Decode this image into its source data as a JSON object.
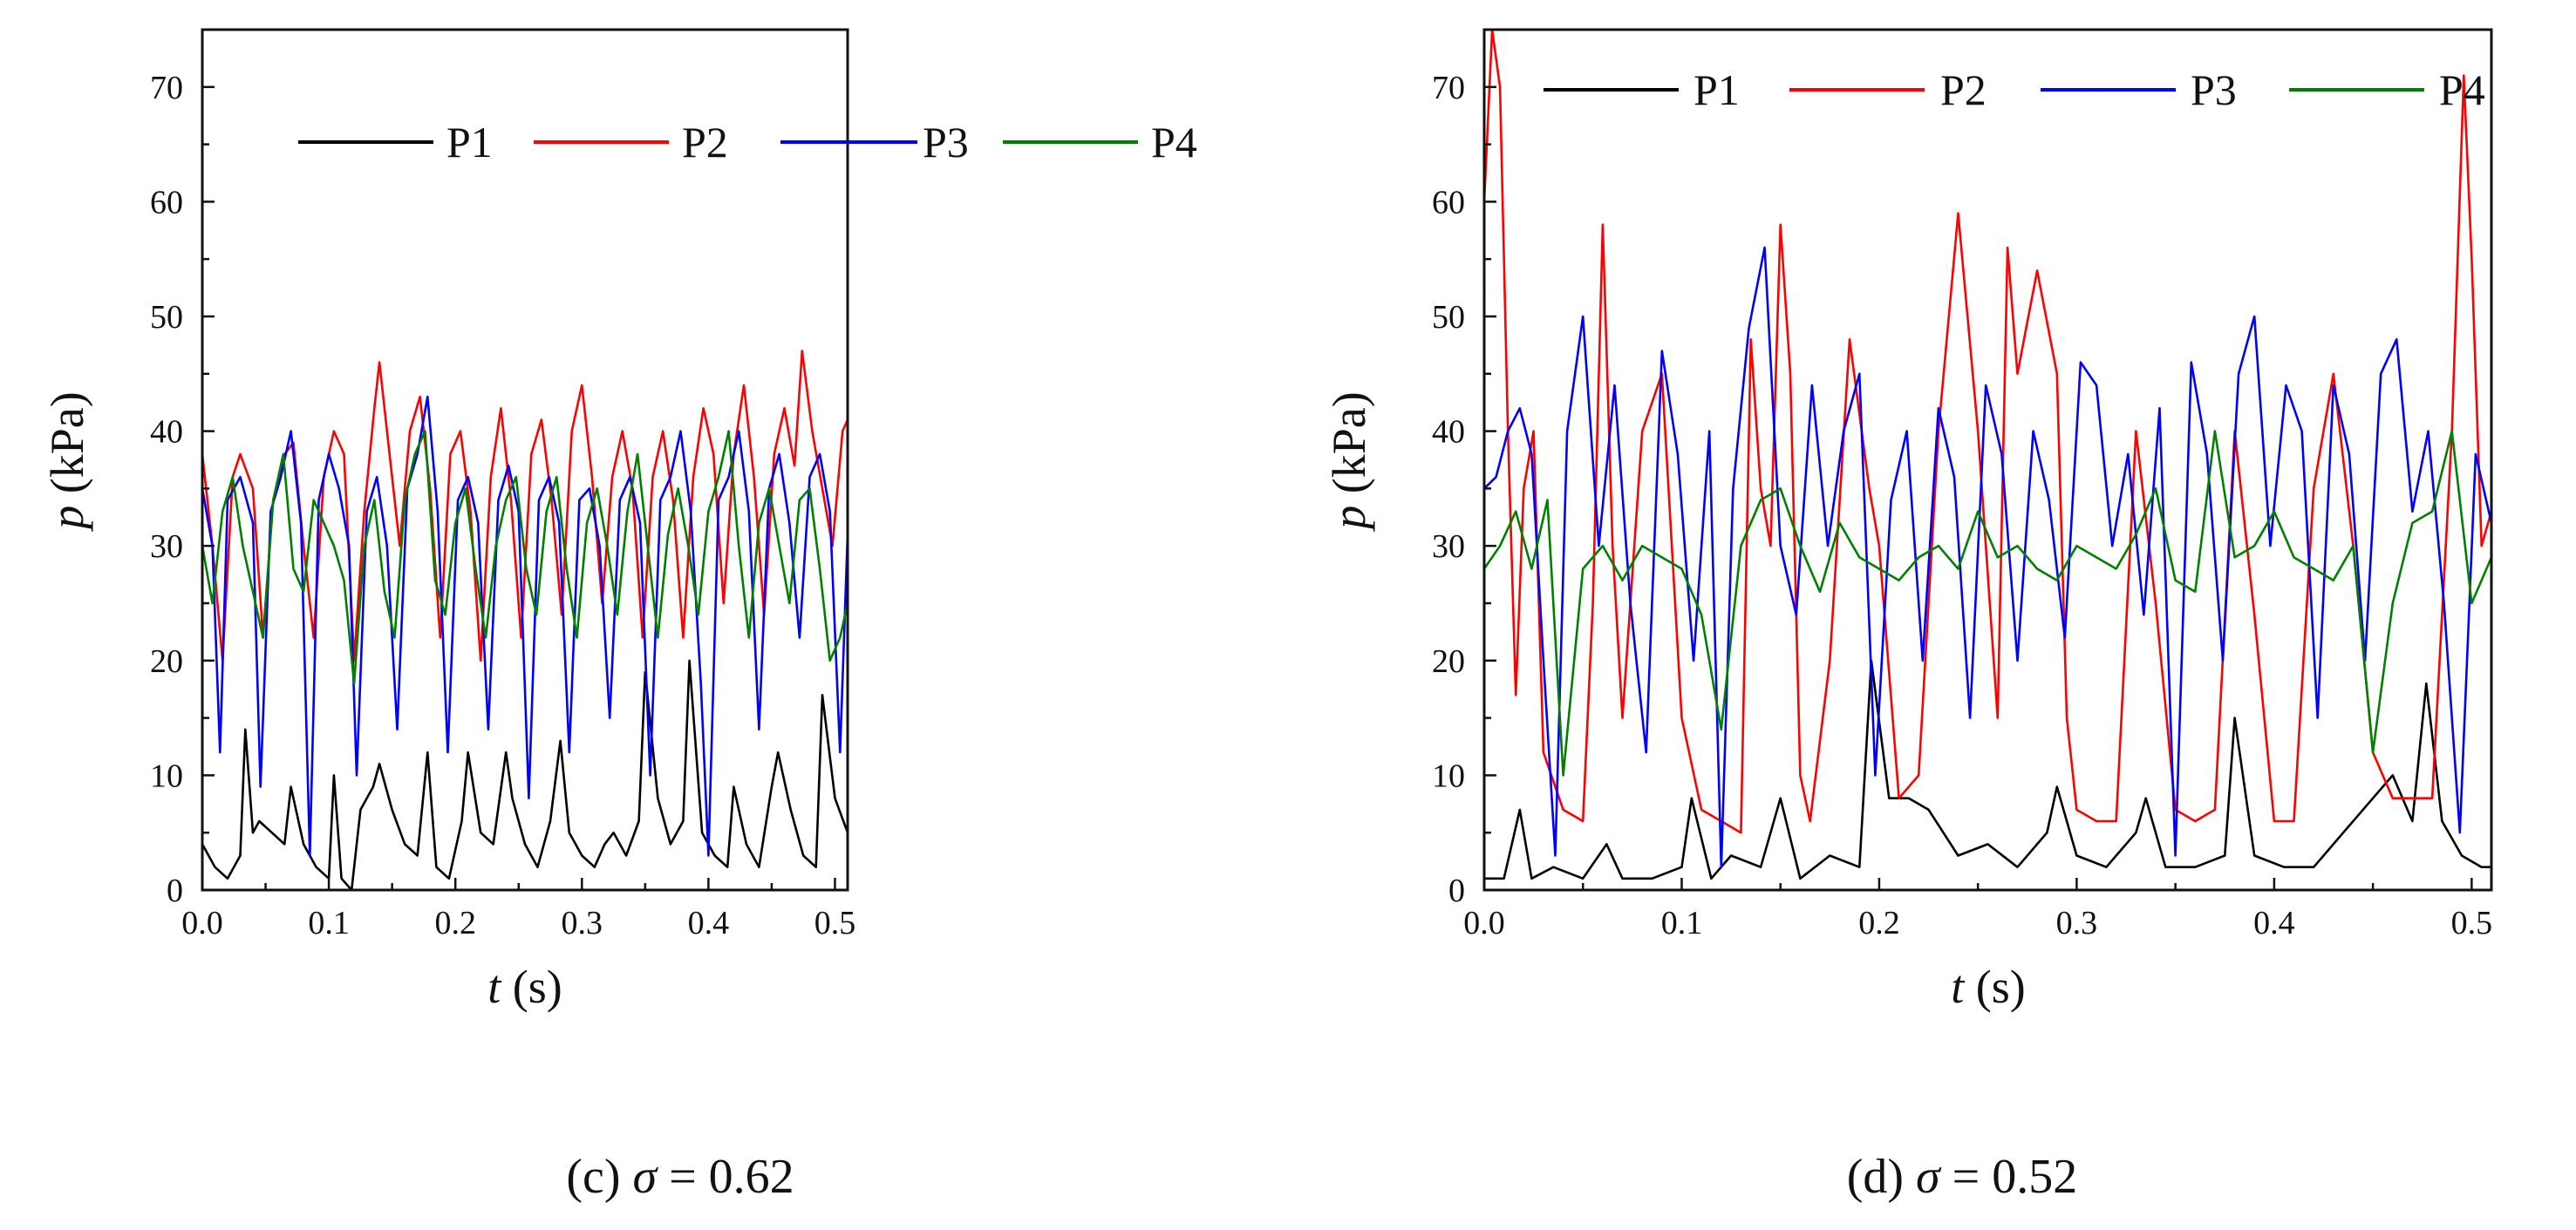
{
  "colors": {
    "P1": "#000000",
    "P2": "#ff0000",
    "P3": "#0000ff",
    "P4": "#008000",
    "axis": "#111111"
  },
  "chart_data": [
    {
      "type": "line",
      "id": "c",
      "caption_label": "(c)",
      "caption_symbol": "σ",
      "caption_value": "= 0.62",
      "xlabel": "t",
      "xlabel_unit": "(s)",
      "ylabel": "p",
      "ylabel_unit": "(kPa)",
      "xlim": [
        0,
        0.51
      ],
      "ylim": [
        0,
        75
      ],
      "xticks": [
        0.0,
        0.1,
        0.2,
        0.3,
        0.4,
        0.5
      ],
      "xtick_labels": [
        "0.0",
        "0.1",
        "0.2",
        "0.3",
        "0.4",
        "0.5"
      ],
      "yticks": [
        0,
        10,
        20,
        30,
        40,
        50,
        60,
        70
      ],
      "ytick_labels": [
        "0",
        "10",
        "20",
        "30",
        "40",
        "50",
        "60",
        "70"
      ],
      "legend": [
        "P1",
        "P2",
        "P3",
        "P4"
      ],
      "legend_position": "top-right",
      "series": [
        {
          "name": "P1",
          "color": "#000000",
          "x": [
            0.0,
            0.01,
            0.02,
            0.03,
            0.034,
            0.04,
            0.045,
            0.055,
            0.065,
            0.07,
            0.08,
            0.09,
            0.1,
            0.104,
            0.11,
            0.118,
            0.125,
            0.135,
            0.14,
            0.15,
            0.16,
            0.17,
            0.178,
            0.185,
            0.195,
            0.205,
            0.21,
            0.22,
            0.23,
            0.24,
            0.245,
            0.255,
            0.265,
            0.275,
            0.283,
            0.29,
            0.3,
            0.31,
            0.318,
            0.325,
            0.335,
            0.345,
            0.35,
            0.36,
            0.37,
            0.38,
            0.385,
            0.395,
            0.405,
            0.415,
            0.42,
            0.43,
            0.44,
            0.45,
            0.455,
            0.465,
            0.475,
            0.485,
            0.49,
            0.5,
            0.51
          ],
          "y": [
            4,
            2,
            1,
            3,
            14,
            5,
            6,
            5,
            4,
            9,
            4,
            2,
            1,
            10,
            1,
            0,
            7,
            9,
            11,
            7,
            4,
            3,
            12,
            2,
            1,
            6,
            12,
            5,
            4,
            12,
            8,
            4,
            2,
            6,
            13,
            5,
            3,
            2,
            4,
            5,
            3,
            6,
            19,
            8,
            4,
            6,
            20,
            5,
            3,
            2,
            9,
            4,
            2,
            9,
            12,
            7,
            3,
            2,
            17,
            8,
            5
          ]
        },
        {
          "name": "P2",
          "color": "#ff0000",
          "x": [
            0.0,
            0.008,
            0.016,
            0.024,
            0.03,
            0.04,
            0.048,
            0.056,
            0.065,
            0.072,
            0.08,
            0.088,
            0.096,
            0.104,
            0.112,
            0.12,
            0.128,
            0.136,
            0.14,
            0.148,
            0.156,
            0.164,
            0.172,
            0.18,
            0.188,
            0.196,
            0.204,
            0.212,
            0.22,
            0.228,
            0.236,
            0.244,
            0.252,
            0.26,
            0.268,
            0.276,
            0.284,
            0.292,
            0.3,
            0.308,
            0.316,
            0.324,
            0.332,
            0.34,
            0.348,
            0.356,
            0.364,
            0.372,
            0.38,
            0.388,
            0.396,
            0.404,
            0.412,
            0.42,
            0.428,
            0.436,
            0.444,
            0.452,
            0.46,
            0.468,
            0.474,
            0.482,
            0.49,
            0.498,
            0.506,
            0.51
          ],
          "y": [
            38,
            30,
            20,
            36,
            38,
            35,
            22,
            34,
            38,
            39,
            30,
            22,
            36,
            40,
            38,
            20,
            33,
            42,
            46,
            38,
            30,
            40,
            43,
            35,
            22,
            38,
            40,
            33,
            20,
            36,
            42,
            34,
            22,
            38,
            41,
            34,
            24,
            40,
            44,
            36,
            25,
            36,
            40,
            35,
            22,
            36,
            40,
            34,
            22,
            36,
            42,
            38,
            25,
            38,
            44,
            36,
            24,
            38,
            42,
            37,
            47,
            40,
            35,
            30,
            40,
            41
          ]
        },
        {
          "name": "P3",
          "color": "#0000ff",
          "x": [
            0.0,
            0.008,
            0.014,
            0.02,
            0.03,
            0.04,
            0.046,
            0.054,
            0.062,
            0.07,
            0.078,
            0.085,
            0.092,
            0.1,
            0.108,
            0.116,
            0.122,
            0.13,
            0.138,
            0.146,
            0.154,
            0.162,
            0.17,
            0.178,
            0.186,
            0.194,
            0.202,
            0.21,
            0.218,
            0.226,
            0.234,
            0.242,
            0.25,
            0.258,
            0.266,
            0.274,
            0.282,
            0.29,
            0.298,
            0.306,
            0.314,
            0.322,
            0.33,
            0.338,
            0.346,
            0.354,
            0.362,
            0.37,
            0.378,
            0.386,
            0.394,
            0.4,
            0.408,
            0.416,
            0.424,
            0.432,
            0.44,
            0.448,
            0.456,
            0.464,
            0.472,
            0.48,
            0.488,
            0.496,
            0.504,
            0.51
          ],
          "y": [
            35,
            30,
            12,
            34,
            36,
            32,
            9,
            33,
            36,
            40,
            32,
            3,
            34,
            38,
            35,
            30,
            10,
            33,
            36,
            30,
            14,
            35,
            38,
            43,
            33,
            12,
            34,
            36,
            32,
            14,
            34,
            37,
            33,
            8,
            34,
            36,
            32,
            12,
            34,
            35,
            30,
            15,
            34,
            36,
            32,
            10,
            34,
            36,
            40,
            33,
            18,
            3,
            34,
            36,
            40,
            33,
            14,
            35,
            38,
            32,
            22,
            36,
            38,
            33,
            12,
            31
          ]
        },
        {
          "name": "P4",
          "color": "#008000",
          "x": [
            0.0,
            0.008,
            0.016,
            0.024,
            0.032,
            0.04,
            0.048,
            0.056,
            0.064,
            0.072,
            0.08,
            0.088,
            0.096,
            0.104,
            0.112,
            0.12,
            0.128,
            0.136,
            0.144,
            0.152,
            0.16,
            0.168,
            0.176,
            0.184,
            0.192,
            0.2,
            0.208,
            0.216,
            0.224,
            0.232,
            0.24,
            0.248,
            0.256,
            0.264,
            0.272,
            0.28,
            0.288,
            0.296,
            0.304,
            0.312,
            0.32,
            0.328,
            0.336,
            0.344,
            0.352,
            0.36,
            0.368,
            0.376,
            0.384,
            0.392,
            0.4,
            0.408,
            0.416,
            0.424,
            0.432,
            0.44,
            0.448,
            0.456,
            0.464,
            0.472,
            0.48,
            0.488,
            0.496,
            0.504,
            0.51
          ],
          "y": [
            30,
            25,
            33,
            36,
            30,
            26,
            22,
            34,
            38,
            28,
            26,
            34,
            32,
            30,
            27,
            18,
            30,
            34,
            26,
            22,
            34,
            38,
            40,
            27,
            24,
            32,
            35,
            28,
            22,
            30,
            34,
            36,
            28,
            24,
            33,
            36,
            28,
            22,
            32,
            35,
            30,
            24,
            33,
            38,
            30,
            22,
            31,
            35,
            30,
            24,
            33,
            36,
            40,
            30,
            22,
            32,
            35,
            30,
            25,
            34,
            35,
            28,
            20,
            22,
            25
          ]
        }
      ]
    },
    {
      "type": "line",
      "id": "d",
      "caption_label": "(d)",
      "caption_symbol": "σ",
      "caption_value": "= 0.52",
      "xlabel": "t",
      "xlabel_unit": "(s)",
      "ylabel": "p",
      "ylabel_unit": "(kPa)",
      "xlim": [
        0,
        0.51
      ],
      "ylim": [
        0,
        75
      ],
      "xticks": [
        0.0,
        0.1,
        0.2,
        0.3,
        0.4,
        0.5
      ],
      "xtick_labels": [
        "0.0",
        "0.1",
        "0.2",
        "0.3",
        "0.4",
        "0.5"
      ],
      "yticks": [
        0,
        10,
        20,
        30,
        40,
        50,
        60,
        70
      ],
      "ytick_labels": [
        "0",
        "10",
        "20",
        "30",
        "40",
        "50",
        "60",
        "70"
      ],
      "legend": [
        "P1",
        "P2",
        "P3",
        "P4"
      ],
      "legend_position": "top",
      "series": [
        {
          "name": "P1",
          "color": "#000000",
          "x": [
            0.0,
            0.01,
            0.018,
            0.024,
            0.035,
            0.05,
            0.062,
            0.07,
            0.085,
            0.1,
            0.105,
            0.115,
            0.125,
            0.14,
            0.15,
            0.16,
            0.175,
            0.19,
            0.196,
            0.205,
            0.215,
            0.225,
            0.24,
            0.255,
            0.27,
            0.285,
            0.29,
            0.3,
            0.315,
            0.33,
            0.335,
            0.345,
            0.36,
            0.375,
            0.38,
            0.39,
            0.405,
            0.42,
            0.435,
            0.45,
            0.46,
            0.47,
            0.477,
            0.485,
            0.495,
            0.505,
            0.51
          ],
          "y": [
            1,
            1,
            7,
            1,
            2,
            1,
            4,
            1,
            1,
            2,
            8,
            1,
            3,
            2,
            8,
            1,
            3,
            2,
            20,
            8,
            8,
            7,
            3,
            4,
            2,
            5,
            9,
            3,
            2,
            5,
            8,
            2,
            2,
            3,
            15,
            3,
            2,
            2,
            5,
            8,
            10,
            6,
            18,
            6,
            3,
            2,
            2
          ]
        },
        {
          "name": "P2",
          "color": "#ff0000",
          "x": [
            0.0,
            0.004,
            0.008,
            0.012,
            0.016,
            0.02,
            0.025,
            0.03,
            0.04,
            0.05,
            0.055,
            0.06,
            0.065,
            0.07,
            0.08,
            0.09,
            0.1,
            0.11,
            0.12,
            0.13,
            0.135,
            0.14,
            0.145,
            0.15,
            0.155,
            0.16,
            0.165,
            0.175,
            0.185,
            0.195,
            0.2,
            0.21,
            0.22,
            0.23,
            0.24,
            0.25,
            0.26,
            0.265,
            0.27,
            0.28,
            0.29,
            0.295,
            0.3,
            0.31,
            0.32,
            0.33,
            0.34,
            0.35,
            0.36,
            0.37,
            0.38,
            0.39,
            0.4,
            0.41,
            0.42,
            0.43,
            0.44,
            0.45,
            0.46,
            0.47,
            0.48,
            0.49,
            0.496,
            0.5,
            0.505,
            0.51
          ],
          "y": [
            60,
            75,
            70,
            40,
            17,
            35,
            40,
            12,
            7,
            6,
            25,
            58,
            30,
            15,
            40,
            45,
            15,
            7,
            6,
            5,
            48,
            35,
            30,
            58,
            45,
            10,
            6,
            20,
            48,
            35,
            30,
            8,
            10,
            40,
            59,
            40,
            15,
            56,
            45,
            54,
            45,
            15,
            7,
            6,
            6,
            40,
            25,
            7,
            6,
            7,
            40,
            24,
            6,
            6,
            35,
            45,
            30,
            12,
            8,
            8,
            8,
            40,
            71,
            55,
            30,
            33
          ]
        },
        {
          "name": "P3",
          "color": "#0000ff",
          "x": [
            0.0,
            0.006,
            0.012,
            0.018,
            0.024,
            0.03,
            0.036,
            0.042,
            0.05,
            0.058,
            0.066,
            0.074,
            0.082,
            0.09,
            0.098,
            0.106,
            0.114,
            0.12,
            0.126,
            0.134,
            0.142,
            0.15,
            0.158,
            0.166,
            0.174,
            0.182,
            0.19,
            0.198,
            0.206,
            0.214,
            0.222,
            0.23,
            0.238,
            0.246,
            0.254,
            0.262,
            0.27,
            0.278,
            0.286,
            0.294,
            0.302,
            0.31,
            0.318,
            0.326,
            0.334,
            0.342,
            0.35,
            0.358,
            0.366,
            0.374,
            0.382,
            0.39,
            0.398,
            0.406,
            0.414,
            0.422,
            0.43,
            0.438,
            0.446,
            0.454,
            0.462,
            0.47,
            0.478,
            0.486,
            0.494,
            0.502,
            0.51
          ],
          "y": [
            35,
            36,
            40,
            42,
            38,
            20,
            3,
            40,
            50,
            30,
            44,
            25,
            12,
            47,
            38,
            20,
            40,
            2,
            35,
            49,
            56,
            30,
            24,
            44,
            30,
            40,
            45,
            10,
            34,
            40,
            20,
            42,
            36,
            15,
            44,
            38,
            20,
            40,
            34,
            22,
            46,
            44,
            30,
            38,
            24,
            42,
            3,
            46,
            38,
            20,
            45,
            50,
            30,
            44,
            40,
            15,
            44,
            38,
            20,
            45,
            48,
            33,
            40,
            25,
            5,
            38,
            32
          ]
        },
        {
          "name": "P4",
          "color": "#008000",
          "x": [
            0.0,
            0.008,
            0.016,
            0.024,
            0.032,
            0.04,
            0.05,
            0.06,
            0.07,
            0.08,
            0.09,
            0.1,
            0.11,
            0.12,
            0.13,
            0.14,
            0.15,
            0.16,
            0.17,
            0.18,
            0.19,
            0.2,
            0.21,
            0.22,
            0.23,
            0.24,
            0.25,
            0.26,
            0.27,
            0.28,
            0.29,
            0.3,
            0.31,
            0.32,
            0.33,
            0.34,
            0.35,
            0.36,
            0.37,
            0.38,
            0.39,
            0.4,
            0.41,
            0.42,
            0.43,
            0.44,
            0.45,
            0.46,
            0.47,
            0.48,
            0.49,
            0.5,
            0.51
          ],
          "y": [
            28,
            30,
            33,
            28,
            34,
            10,
            28,
            30,
            27,
            30,
            29,
            28,
            24,
            14,
            30,
            34,
            35,
            30,
            26,
            32,
            29,
            28,
            27,
            29,
            30,
            28,
            33,
            29,
            30,
            28,
            27,
            30,
            29,
            28,
            31,
            35,
            27,
            26,
            40,
            29,
            30,
            33,
            29,
            28,
            27,
            30,
            12,
            25,
            32,
            33,
            40,
            25,
            29
          ]
        }
      ]
    }
  ]
}
